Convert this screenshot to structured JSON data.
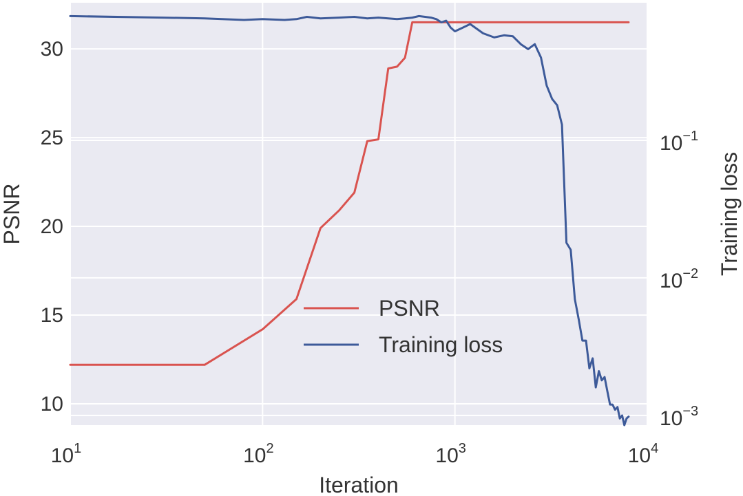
{
  "chart_data": {
    "type": "line",
    "title": "",
    "xlabel": "Iteration",
    "ylabel": "PSNR",
    "y2label": "Training loss",
    "x_scale": "log",
    "y2_scale": "log",
    "xlim": [
      10,
      10000
    ],
    "ylim": [
      8.8,
      32.6
    ],
    "y2lim": [
      0.00085,
      1.0
    ],
    "x_ticks": [
      {
        "value": 10,
        "base": "10",
        "exp": "1"
      },
      {
        "value": 100,
        "base": "10",
        "exp": "2"
      },
      {
        "value": 1000,
        "base": "10",
        "exp": "3"
      },
      {
        "value": 10000,
        "base": "10",
        "exp": "4"
      }
    ],
    "y_ticks": [
      {
        "value": 10,
        "label": "10"
      },
      {
        "value": 15,
        "label": "15"
      },
      {
        "value": 20,
        "label": "20"
      },
      {
        "value": 25,
        "label": "25"
      },
      {
        "value": 30,
        "label": "30"
      }
    ],
    "y2_ticks": [
      {
        "value": 0.1,
        "base": "10",
        "exp": "−1"
      },
      {
        "value": 0.01,
        "base": "10",
        "exp": "−2"
      },
      {
        "value": 0.001,
        "base": "10",
        "exp": "−3"
      }
    ],
    "grid": true,
    "legend_position": "lower-center",
    "series": [
      {
        "name": "PSNR",
        "color": "#d9534f",
        "axis": "left",
        "x": [
          10,
          50,
          100,
          150,
          200,
          250,
          300,
          350,
          400,
          450,
          500,
          550,
          600,
          650,
          700,
          1000,
          2000,
          4000,
          8000
        ],
        "y": [
          12.2,
          12.2,
          14.2,
          15.9,
          19.9,
          20.9,
          21.9,
          24.8,
          24.9,
          28.9,
          29.0,
          29.5,
          31.5,
          31.5,
          31.5,
          31.5,
          31.5,
          31.5,
          31.5
        ]
      },
      {
        "name": "Training loss",
        "color": "#3d5a99",
        "axis": "right",
        "x": [
          10,
          30,
          50,
          80,
          100,
          130,
          150,
          170,
          200,
          250,
          300,
          350,
          400,
          450,
          500,
          550,
          600,
          650,
          700,
          750,
          800,
          850,
          900,
          950,
          1000,
          1100,
          1200,
          1400,
          1600,
          1800,
          2000,
          2200,
          2400,
          2600,
          2800,
          3000,
          3200,
          3400,
          3600,
          3800,
          4000,
          4200,
          4400,
          4600,
          4800,
          5000,
          5200,
          5400,
          5600,
          5800,
          6000,
          6200,
          6400,
          6600,
          6800,
          7000,
          7200,
          7400,
          7600,
          7800,
          8000
        ],
        "y": [
          0.8,
          0.78,
          0.77,
          0.75,
          0.76,
          0.75,
          0.76,
          0.79,
          0.77,
          0.78,
          0.79,
          0.77,
          0.78,
          0.77,
          0.76,
          0.77,
          0.78,
          0.8,
          0.79,
          0.78,
          0.76,
          0.72,
          0.74,
          0.66,
          0.62,
          0.66,
          0.7,
          0.6,
          0.56,
          0.58,
          0.57,
          0.5,
          0.46,
          0.5,
          0.4,
          0.25,
          0.2,
          0.18,
          0.13,
          0.018,
          0.016,
          0.007,
          0.005,
          0.0035,
          0.0035,
          0.0022,
          0.0026,
          0.0016,
          0.0021,
          0.0018,
          0.0019,
          0.0015,
          0.0012,
          0.0012,
          0.0011,
          0.00115,
          0.00095,
          0.001,
          0.00085,
          0.00095,
          0.00098
        ]
      }
    ]
  }
}
